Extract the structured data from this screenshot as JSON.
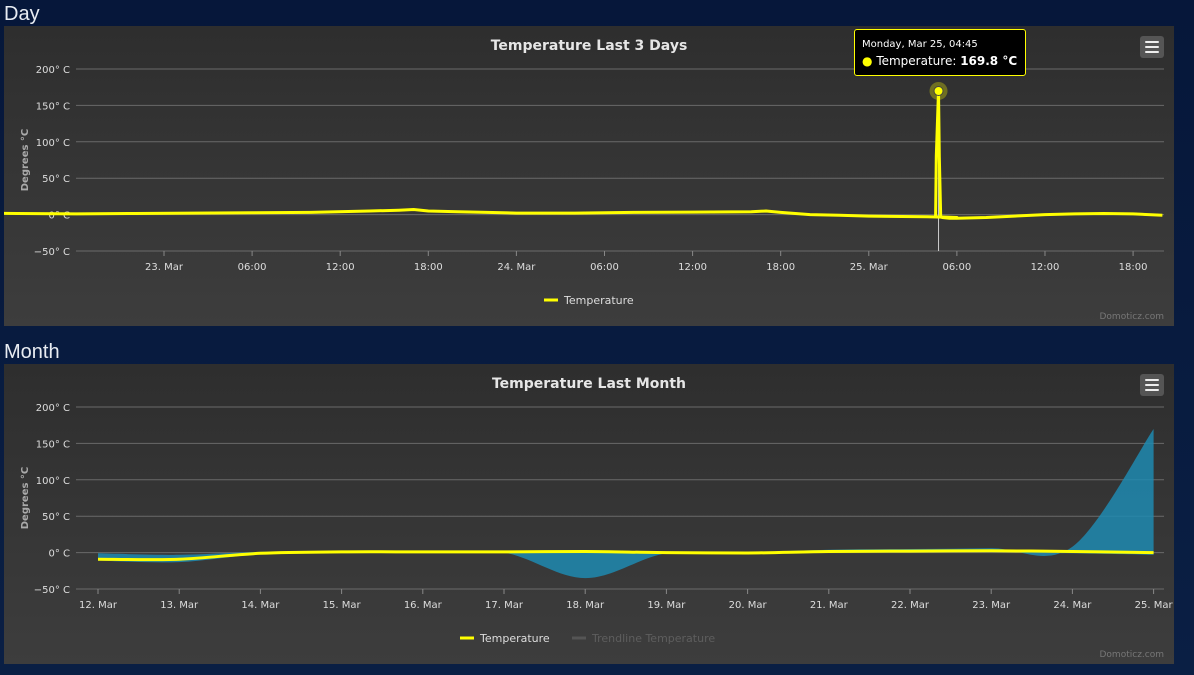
{
  "sections": {
    "day_label": "Day",
    "month_label": "Month"
  },
  "chart_data": [
    {
      "type": "line",
      "title": "Temperature Last 3 Days",
      "ylabel": "Degrees °C",
      "ylim": [
        -50,
        200
      ],
      "y_ticks": [
        "200° C",
        "150° C",
        "100° C",
        "50° C",
        "0° C",
        "−50° C"
      ],
      "x_ticks": [
        "23. Mar",
        "06:00",
        "12:00",
        "18:00",
        "24. Mar",
        "06:00",
        "12:00",
        "18:00",
        "25. Mar",
        "06:00",
        "12:00",
        "18:00"
      ],
      "grid": true,
      "legend": "bottom-center",
      "series": [
        {
          "name": "Temperature",
          "color": "#ffff00",
          "x_hours": [
            -14,
            -10,
            -6,
            -2,
            2,
            6,
            10,
            14,
            16,
            17,
            18,
            20,
            22,
            24,
            28,
            32,
            36,
            40,
            41,
            42,
            44,
            46,
            48,
            52,
            54,
            52.55,
            52.6,
            52.75,
            52.8,
            52.9,
            53,
            53.5,
            54,
            56,
            60,
            62,
            64,
            66,
            68
          ],
          "values": [
            2,
            1.5,
            1,
            1.5,
            2,
            2.5,
            3,
            5,
            6,
            7,
            5,
            4,
            3,
            2,
            2,
            3,
            3.5,
            4,
            5,
            3,
            0,
            -1,
            -2,
            -3,
            -4,
            -3,
            80,
            169.8,
            80,
            -3,
            -4,
            -5,
            -5,
            -4,
            0,
            1,
            1.5,
            1,
            -1
          ]
        }
      ],
      "tooltip": {
        "date": "Monday, Mar 25, 04:45",
        "series": "Temperature",
        "value": "169.8 °C"
      },
      "credit": "Domoticz.com"
    },
    {
      "type": "area",
      "title": "Temperature Last Month",
      "ylabel": "Degrees °C",
      "ylim": [
        -50,
        200
      ],
      "y_ticks": [
        "200° C",
        "150° C",
        "100° C",
        "50° C",
        "0° C",
        "−50° C"
      ],
      "categories": [
        "12. Mar",
        "13. Mar",
        "14. Mar",
        "15. Mar",
        "16. Mar",
        "17. Mar",
        "18. Mar",
        "19. Mar",
        "20. Mar",
        "21. Mar",
        "22. Mar",
        "23. Mar",
        "24. Mar",
        "25. Mar"
      ],
      "grid": true,
      "legend": "bottom-center",
      "series": [
        {
          "name": "Temperature",
          "color": "#ffff00",
          "x": [
            0,
            1,
            2,
            3,
            4,
            5,
            6,
            7,
            8,
            9,
            10,
            11,
            12,
            13
          ],
          "values": [
            -9,
            -9,
            -1,
            1,
            1,
            1,
            1.5,
            0,
            -0.5,
            1.5,
            2,
            2.5,
            1.5,
            0
          ]
        },
        {
          "name": "Trendline Temperature",
          "color": "#555555",
          "visible": false
        }
      ],
      "range_band": {
        "color": "#1e8ab0",
        "x": [
          0,
          1,
          2,
          3,
          4,
          5,
          6,
          7,
          8,
          9,
          10,
          11,
          12,
          13
        ],
        "upper": [
          -1,
          -3,
          1,
          2,
          2,
          2,
          2,
          1,
          0.5,
          4,
          5,
          6,
          8,
          169.8
        ],
        "lower": [
          -11,
          -13,
          -2,
          0,
          0,
          0,
          -35,
          -1,
          -1,
          0,
          1,
          2,
          -1,
          -3
        ]
      },
      "credit": "Domoticz.com"
    }
  ]
}
